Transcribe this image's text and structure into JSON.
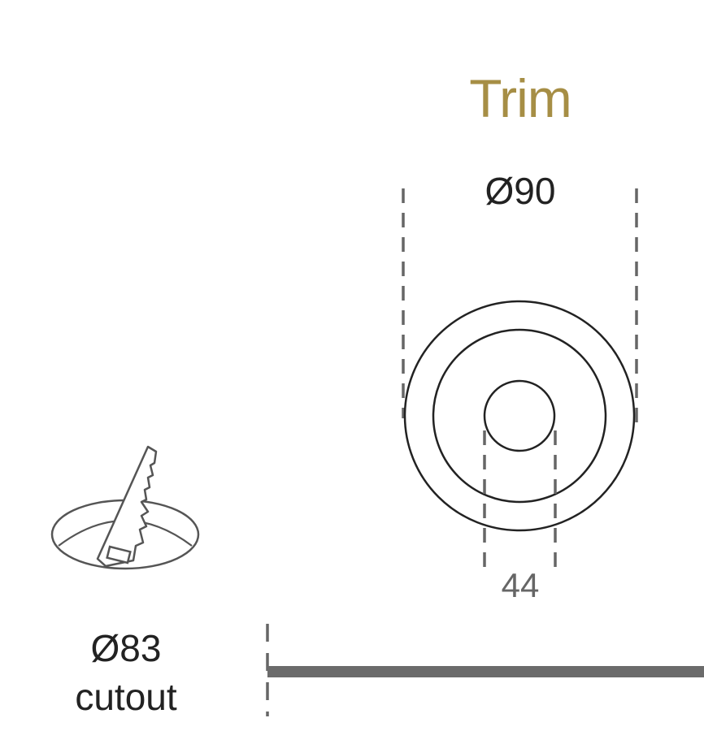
{
  "trim": {
    "title": "Trim",
    "outer_diameter_label": "Ø90",
    "inner_dimension_label": "44"
  },
  "cutout": {
    "diameter_label": "Ø83",
    "label": "cutout"
  },
  "colors": {
    "accent": "#a68e45",
    "line": "#222222",
    "dimension": "#666666",
    "bar": "#6b6b6b"
  },
  "icons": {
    "cutout": "saw-cutting-hole-icon"
  }
}
